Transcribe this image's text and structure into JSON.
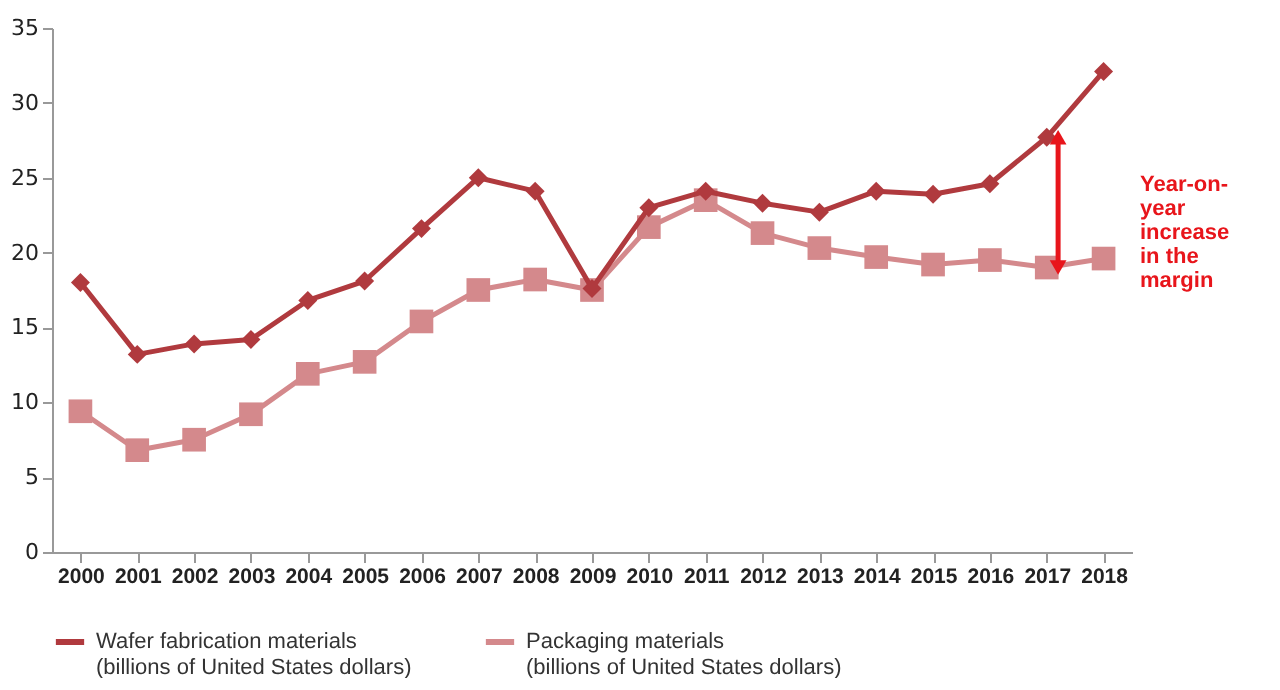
{
  "chart_data": {
    "type": "line",
    "categories": [
      "2000",
      "2001",
      "2002",
      "2003",
      "2004",
      "2005",
      "2006",
      "2007",
      "2008",
      "2009",
      "2010",
      "2011",
      "2012",
      "2013",
      "2014",
      "2015",
      "2016",
      "2017",
      "2018"
    ],
    "series": [
      {
        "name": "Wafer fabrication materials (billions of United States dollars)",
        "color": "#b03a3e",
        "marker": "diamond",
        "values": [
          18.0,
          13.2,
          13.9,
          14.2,
          16.8,
          18.1,
          21.6,
          25.0,
          24.1,
          17.6,
          23.0,
          24.1,
          23.3,
          22.7,
          24.1,
          23.9,
          24.6,
          27.7,
          32.1
        ]
      },
      {
        "name": "Packaging materials (billions of United States dollars)",
        "color": "#d4898c",
        "marker": "square",
        "values": [
          9.4,
          6.8,
          7.5,
          9.2,
          11.9,
          12.7,
          15.4,
          17.5,
          18.2,
          17.5,
          21.7,
          23.5,
          21.3,
          20.3,
          19.7,
          19.2,
          19.5,
          19.0,
          19.6
        ]
      }
    ],
    "ylim": [
      0,
      35
    ],
    "yticks": [
      0,
      5,
      10,
      15,
      20,
      25,
      30,
      35
    ],
    "grid": false,
    "legend": "bottom",
    "line_style": "solid",
    "annotations": [
      "Year-on-year increase in the margin"
    ]
  }
}
